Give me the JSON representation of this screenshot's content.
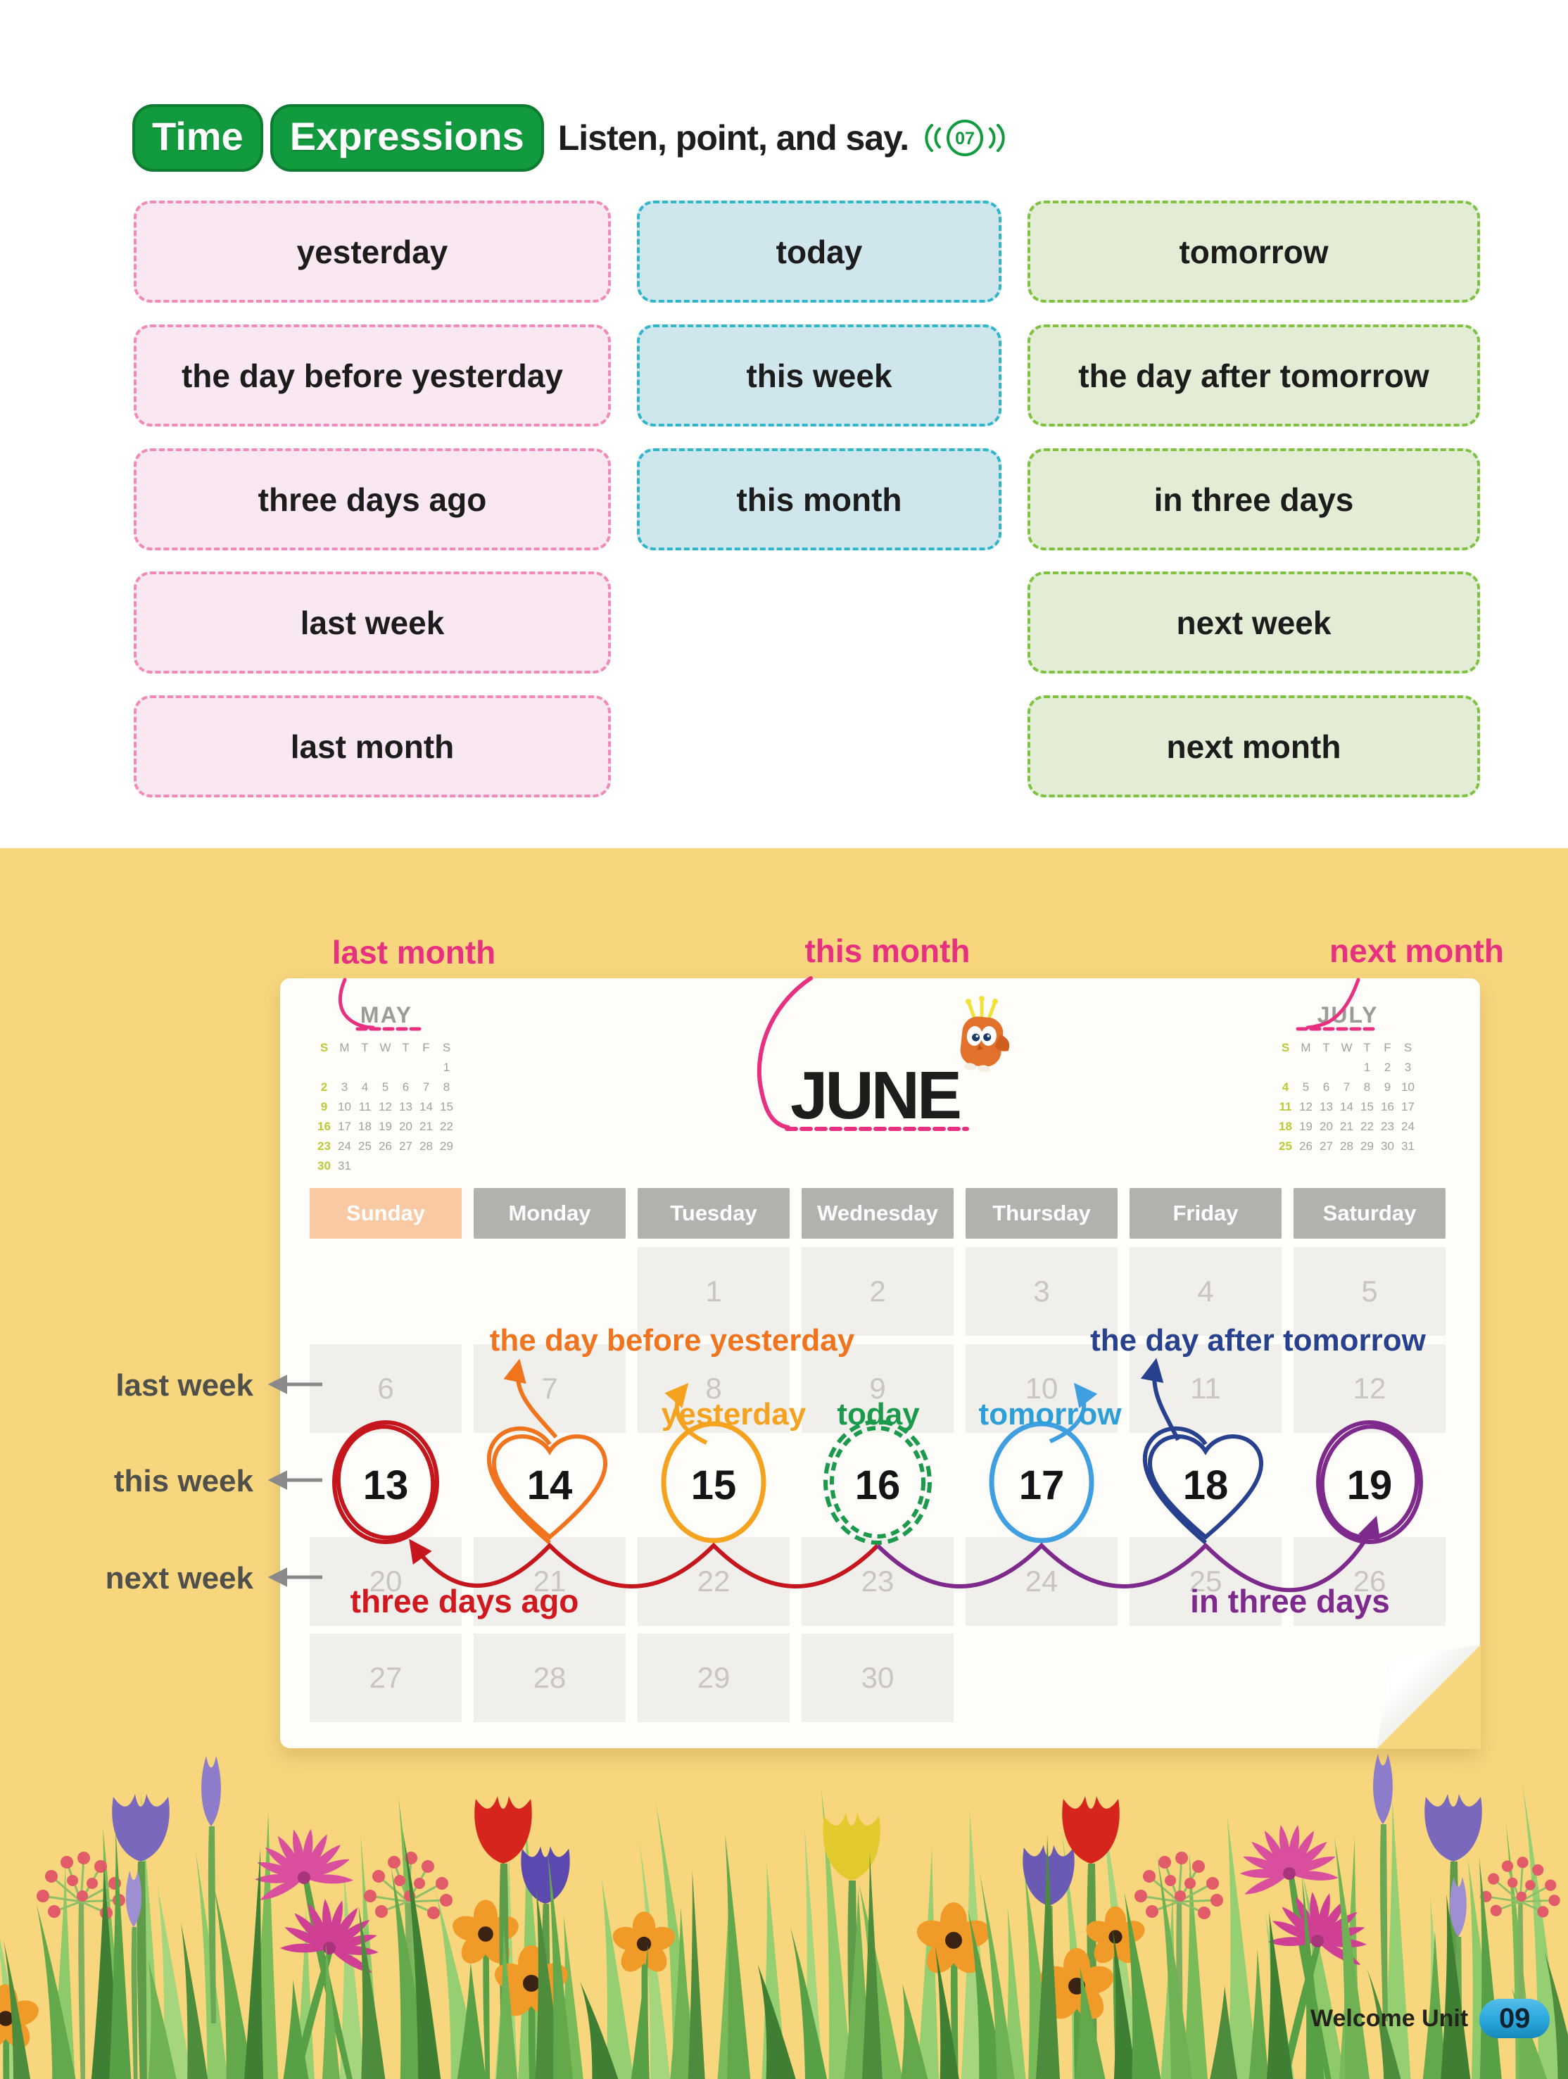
{
  "header": {
    "badge_word1": "Time",
    "badge_word2": "Expressions",
    "instruction": "Listen, point, and say.",
    "audio_track": "07"
  },
  "expression_cards": {
    "pink": [
      "yesterday",
      "the day before yesterday",
      "three days ago",
      "last week",
      "last month"
    ],
    "blue": [
      "today",
      "this week",
      "this month"
    ],
    "green": [
      "tomorrow",
      "the day after tomorrow",
      "in three days",
      "next week",
      "next month"
    ]
  },
  "calendar": {
    "month_labels": {
      "last": "last month",
      "this": "this month",
      "next": "next month"
    },
    "mini_calendars": [
      {
        "title": "MAY",
        "day_headers": [
          "S",
          "M",
          "T",
          "W",
          "T",
          "F",
          "S"
        ],
        "weeks": [
          [
            "",
            "",
            "",
            "",
            "",
            "",
            "1"
          ],
          [
            "2",
            "3",
            "4",
            "5",
            "6",
            "7",
            "8"
          ],
          [
            "9",
            "10",
            "11",
            "12",
            "13",
            "14",
            "15"
          ],
          [
            "16",
            "17",
            "18",
            "19",
            "20",
            "21",
            "22"
          ],
          [
            "23",
            "24",
            "25",
            "26",
            "27",
            "28",
            "29"
          ],
          [
            "30",
            "31",
            "",
            "",
            "",
            "",
            ""
          ]
        ]
      },
      {
        "title": "JULY",
        "day_headers": [
          "S",
          "M",
          "T",
          "W",
          "T",
          "F",
          "S"
        ],
        "weeks": [
          [
            "",
            "",
            "",
            "",
            "1",
            "2",
            "3"
          ],
          [
            "4",
            "5",
            "6",
            "7",
            "8",
            "9",
            "10"
          ],
          [
            "11",
            "12",
            "13",
            "14",
            "15",
            "16",
            "17"
          ],
          [
            "18",
            "19",
            "20",
            "21",
            "22",
            "23",
            "24"
          ],
          [
            "25",
            "26",
            "27",
            "28",
            "29",
            "30",
            "31"
          ]
        ]
      }
    ],
    "main": {
      "title": "JUNE",
      "day_headers": [
        "Sunday",
        "Monday",
        "Tuesday",
        "Wednesday",
        "Thursday",
        "Friday",
        "Saturday"
      ],
      "weeks": [
        [
          "",
          "",
          "1",
          "2",
          "3",
          "4",
          "5"
        ],
        [
          "6",
          "7",
          "8",
          "9",
          "10",
          "11",
          "12"
        ],
        [
          "13",
          "14",
          "15",
          "16",
          "17",
          "18",
          "19"
        ],
        [
          "20",
          "21",
          "22",
          "23",
          "24",
          "25",
          "26"
        ],
        [
          "27",
          "28",
          "29",
          "30",
          "",
          "",
          ""
        ]
      ],
      "this_week_row_index": 2
    },
    "annotations": {
      "day_before_yesterday": "the day before yesterday",
      "yesterday": "yesterday",
      "today": "today",
      "tomorrow": "tomorrow",
      "day_after_tomorrow": "the day after tomorrow",
      "three_days_ago": "three days ago",
      "in_three_days": "in three days",
      "last_week": "last week",
      "this_week": "this week",
      "next_week": "next week"
    }
  },
  "footer": {
    "unit_label": "Welcome Unit",
    "page_number": "09"
  },
  "colors": {
    "badge_green": "#119a3e",
    "pink_label": "#e73180",
    "yellow_bg": "#f7d67e",
    "card_pink_bg": "#f9e7f1",
    "card_pink_border": "#f08ab8",
    "card_blue_bg": "#cfe7ec",
    "card_blue_border": "#2eb6c9",
    "card_green_bg": "#e3edd5",
    "card_green_border": "#7fc241",
    "header_sunday": "#f9c9a3",
    "header_gray": "#b3b1ae",
    "cell_gray": "#f1efeb",
    "red_pen": "#c4161c",
    "orange_pen": "#f0741e",
    "amber_pen": "#f5a21f",
    "green_pen": "#1a9a4a",
    "blue_pen": "#3f9fe0",
    "navy_pen": "#27418e",
    "purple_pen": "#7d2a8c",
    "sky_pen": "#2d9fd8",
    "gray_pen": "#8a8a8a",
    "lime_sunday": "#b9cb36",
    "page_badge_blue": "#2aa7dd"
  }
}
